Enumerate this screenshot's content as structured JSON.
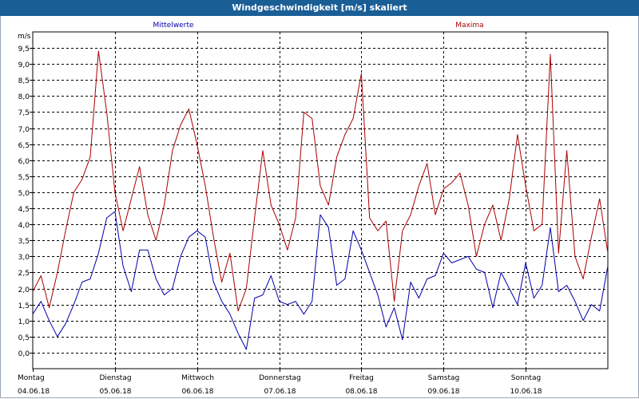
{
  "window": {
    "title": "Windgeschwindigkeit [m/s] skaliert"
  },
  "colors": {
    "titlebar": "#1a5e96",
    "mean": "#0000aa",
    "max": "#aa0000",
    "grid": "#000000"
  },
  "chart_data": {
    "type": "line",
    "title": "Windgeschwindigkeit [m/s] skaliert",
    "ylabel": "m/s",
    "ylim": [
      -0.5,
      10
    ],
    "yticks": [
      0.0,
      0.5,
      1.0,
      1.5,
      2.0,
      2.5,
      3.0,
      3.5,
      4.0,
      4.5,
      5.0,
      5.5,
      6.0,
      6.5,
      7.0,
      7.5,
      8.0,
      8.5,
      9.0,
      9.5
    ],
    "ytick_labels": [
      "0,0",
      "0,5",
      "1,0",
      "1,5",
      "2,0",
      "2,5",
      "3,0",
      "3,5",
      "4,0",
      "4,5",
      "5,0",
      "5,5",
      "6,0",
      "6,5",
      "7,0",
      "7,5",
      "8,0",
      "8,5",
      "9,0",
      "9,5"
    ],
    "xlim": [
      0,
      7
    ],
    "xticks": [
      {
        "day": "Montag",
        "date": "04.06.18"
      },
      {
        "day": "Dienstag",
        "date": "05.06.18"
      },
      {
        "day": "Mittwoch",
        "date": "06.06.18"
      },
      {
        "day": "Donnerstag",
        "date": "07.06.18"
      },
      {
        "day": "Freitag",
        "date": "08.06.18"
      },
      {
        "day": "Samstag",
        "date": "09.06.18"
      },
      {
        "day": "Sonntag",
        "date": "10.06.18"
      }
    ],
    "grid": true,
    "series": [
      {
        "name": "Mittelwerte",
        "color": "#0000aa",
        "x": [
          0,
          0.1,
          0.2,
          0.3,
          0.4,
          0.5,
          0.6,
          0.7,
          0.8,
          0.9,
          1.0,
          1.1,
          1.2,
          1.3,
          1.4,
          1.5,
          1.6,
          1.7,
          1.8,
          1.9,
          2.0,
          2.1,
          2.2,
          2.3,
          2.4,
          2.5,
          2.6,
          2.7,
          2.8,
          2.9,
          3.0,
          3.1,
          3.2,
          3.3,
          3.4,
          3.5,
          3.6,
          3.7,
          3.8,
          3.9,
          4.0,
          4.1,
          4.2,
          4.3,
          4.4,
          4.5,
          4.6,
          4.7,
          4.8,
          4.9,
          5.0,
          5.1,
          5.2,
          5.3,
          5.4,
          5.5,
          5.6,
          5.7,
          5.8,
          5.9,
          6.0,
          6.1,
          6.2,
          6.3,
          6.4,
          6.5,
          6.6,
          6.7,
          6.8,
          6.9,
          7.0
        ],
        "values": [
          1.2,
          1.6,
          1.0,
          0.5,
          0.9,
          1.5,
          2.2,
          2.3,
          3.1,
          4.2,
          4.4,
          2.7,
          1.9,
          3.2,
          3.2,
          2.3,
          1.8,
          2.0,
          3.0,
          3.6,
          3.8,
          3.6,
          2.2,
          1.6,
          1.2,
          0.6,
          0.1,
          1.7,
          1.8,
          2.4,
          1.6,
          1.5,
          1.6,
          1.2,
          1.6,
          4.3,
          3.9,
          2.1,
          2.3,
          3.8,
          3.2,
          2.5,
          1.8,
          0.8,
          1.4,
          0.4,
          2.2,
          1.7,
          2.3,
          2.4,
          3.1,
          2.8,
          2.9,
          3.0,
          2.6,
          2.5,
          1.4,
          2.5,
          2.0,
          1.5,
          2.8,
          1.7,
          2.1,
          3.9,
          1.9,
          2.1,
          1.6,
          1.0,
          1.5,
          1.3,
          2.7
        ]
      },
      {
        "name": "Maxima",
        "color": "#aa0000",
        "x": [
          0,
          0.1,
          0.2,
          0.3,
          0.4,
          0.5,
          0.6,
          0.7,
          0.8,
          0.9,
          1.0,
          1.1,
          1.2,
          1.3,
          1.4,
          1.5,
          1.6,
          1.7,
          1.8,
          1.9,
          2.0,
          2.1,
          2.2,
          2.3,
          2.4,
          2.5,
          2.6,
          2.7,
          2.8,
          2.9,
          3.0,
          3.1,
          3.2,
          3.3,
          3.4,
          3.5,
          3.6,
          3.7,
          3.8,
          3.9,
          4.0,
          4.1,
          4.2,
          4.3,
          4.4,
          4.5,
          4.6,
          4.7,
          4.8,
          4.9,
          5.0,
          5.1,
          5.2,
          5.3,
          5.4,
          5.5,
          5.6,
          5.7,
          5.8,
          5.9,
          6.0,
          6.1,
          6.2,
          6.3,
          6.4,
          6.5,
          6.6,
          6.7,
          6.8,
          6.9,
          7.0
        ],
        "values": [
          1.9,
          2.4,
          1.4,
          2.5,
          3.8,
          5.0,
          5.4,
          6.1,
          9.4,
          7.5,
          5.0,
          3.8,
          4.8,
          5.8,
          4.3,
          3.5,
          4.6,
          6.3,
          7.1,
          7.6,
          6.5,
          5.2,
          3.6,
          2.2,
          3.1,
          1.3,
          2.0,
          4.2,
          6.3,
          4.6,
          4.0,
          3.2,
          4.2,
          7.5,
          7.3,
          5.2,
          4.6,
          6.1,
          6.8,
          7.3,
          8.7,
          4.2,
          3.8,
          4.1,
          1.6,
          3.8,
          4.3,
          5.2,
          5.9,
          4.3,
          5.1,
          5.3,
          5.6,
          4.6,
          3.0,
          4.0,
          4.6,
          3.5,
          4.8,
          6.8,
          5.2,
          3.8,
          4.0,
          9.3,
          3.1,
          6.3,
          3.0,
          2.3,
          3.6,
          4.8,
          3.1
        ]
      }
    ]
  }
}
